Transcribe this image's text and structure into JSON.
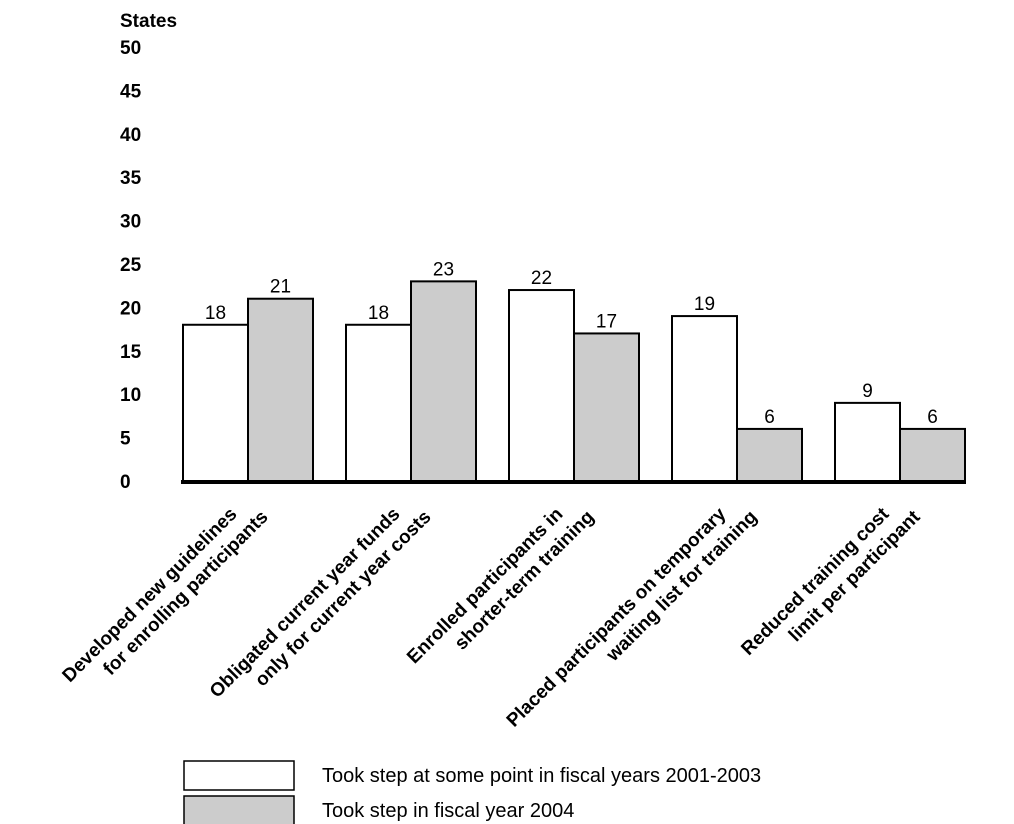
{
  "chart_data": {
    "type": "bar",
    "ylabel": "States",
    "xlabel": "",
    "ylim": [
      0,
      50
    ],
    "yticks": [
      0,
      5,
      10,
      15,
      20,
      25,
      30,
      35,
      40,
      45,
      50
    ],
    "grid": false,
    "legend_position": "bottom",
    "categories": [
      [
        "Developed new guidelines",
        "for enrolling participants"
      ],
      [
        "Obligated current year funds",
        "only for current year costs"
      ],
      [
        "Enrolled participants in",
        "shorter-term training"
      ],
      [
        "Placed participants on temporary",
        "waiting list for training"
      ],
      [
        "Reduced training cost",
        "limit per participant"
      ]
    ],
    "series": [
      {
        "name": "Took step at some point in fiscal years 2001-2003",
        "color": "#ffffff",
        "values": [
          18,
          18,
          22,
          19,
          9
        ]
      },
      {
        "name": "Took step in fiscal year 2004",
        "color": "#cccccc",
        "values": [
          21,
          23,
          17,
          6,
          6
        ]
      }
    ]
  }
}
